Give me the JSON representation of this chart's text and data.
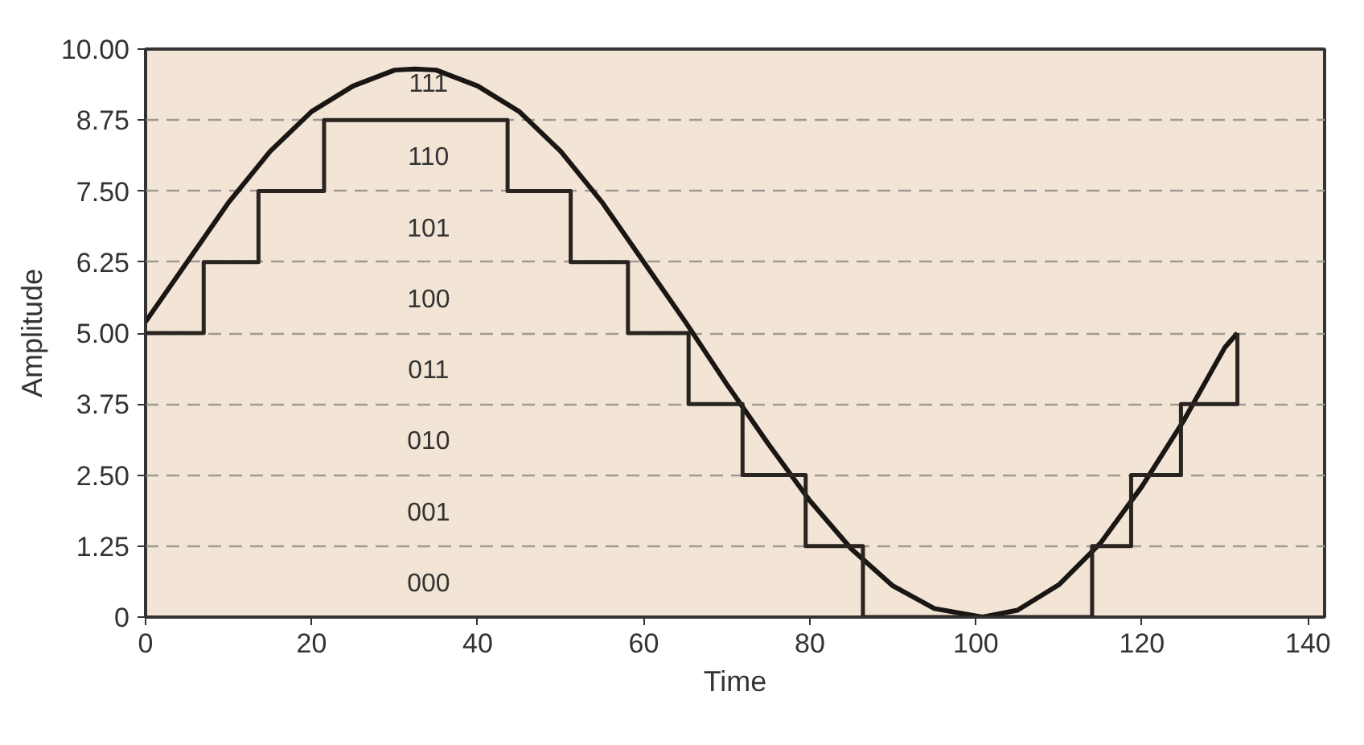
{
  "chart_data": {
    "type": "line",
    "xlabel": "Time",
    "ylabel": "Amplitude",
    "xlim": [
      0,
      142
    ],
    "ylim": [
      0,
      10
    ],
    "xticks": [
      0,
      20,
      40,
      60,
      80,
      100,
      120,
      140
    ],
    "yticks": [
      {
        "value": 0,
        "label": "0"
      },
      {
        "value": 1.25,
        "label": "1.25"
      },
      {
        "value": 2.5,
        "label": "2.50"
      },
      {
        "value": 3.75,
        "label": "3.75"
      },
      {
        "value": 5,
        "label": "5.00"
      },
      {
        "value": 6.25,
        "label": "6.25"
      },
      {
        "value": 7.5,
        "label": "7.50"
      },
      {
        "value": 8.75,
        "label": "8.75"
      },
      {
        "value": 10,
        "label": "10.00"
      }
    ],
    "grid": "y",
    "series": [
      {
        "type": "line",
        "color": "#1a1614",
        "x": [
          0,
          5,
          10,
          15,
          20,
          25,
          30,
          32.5,
          35,
          40,
          45,
          50,
          55,
          60,
          65,
          70,
          75,
          80,
          85,
          90,
          95,
          100.8,
          105,
          110,
          115,
          120,
          125,
          130,
          131.5
        ],
        "values": [
          5.2,
          6.25,
          7.3,
          8.2,
          8.9,
          9.35,
          9.63,
          9.65,
          9.63,
          9.35,
          8.9,
          8.2,
          7.3,
          6.25,
          5.2,
          4.1,
          3.05,
          2.05,
          1.2,
          0.55,
          0.15,
          0,
          0.12,
          0.57,
          1.3,
          2.3,
          3.45,
          4.75,
          5.0
        ]
      },
      {
        "type": "step",
        "color": "#2a2420",
        "x": [
          0,
          7.0,
          13.6,
          21.5,
          43.6,
          51.2,
          58.1,
          65.4,
          71.9,
          79.5,
          86.4,
          114.0,
          118.7,
          124.7,
          131.5
        ],
        "values": [
          5,
          6.25,
          7.5,
          8.75,
          7.5,
          6.25,
          5,
          3.75,
          2.5,
          1.25,
          0,
          1.25,
          2.5,
          3.75,
          5
        ]
      }
    ],
    "annotations": [
      "111",
      "110",
      "101",
      "100",
      "011",
      "010",
      "001",
      "000"
    ]
  }
}
